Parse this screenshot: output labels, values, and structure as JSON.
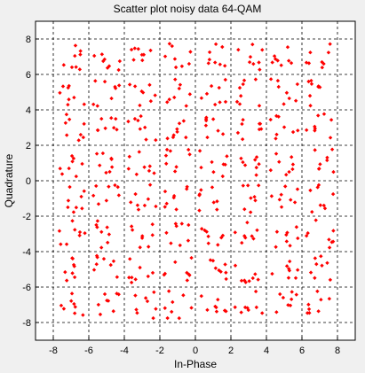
{
  "chart_data": {
    "type": "scatter",
    "title": "Scatter plot noisy data 64-QAM",
    "xlabel": "In-Phase",
    "ylabel": "Quadrature",
    "xlim": [
      -9,
      9
    ],
    "ylim": [
      -9,
      9
    ],
    "xticks": [
      "-8",
      "-6",
      "-4",
      "-2",
      "0",
      "2",
      "4",
      "6",
      "8"
    ],
    "yticks": [
      "8",
      "6",
      "4",
      "2",
      "0",
      "-2",
      "-4",
      "-6",
      "-8"
    ],
    "grid": true,
    "marker_color": "#ff0000",
    "constellation_levels": [
      -7,
      -5,
      -3,
      -1,
      1,
      3,
      5,
      7
    ],
    "points_per_cluster": 8,
    "noise_spread": 0.65
  }
}
